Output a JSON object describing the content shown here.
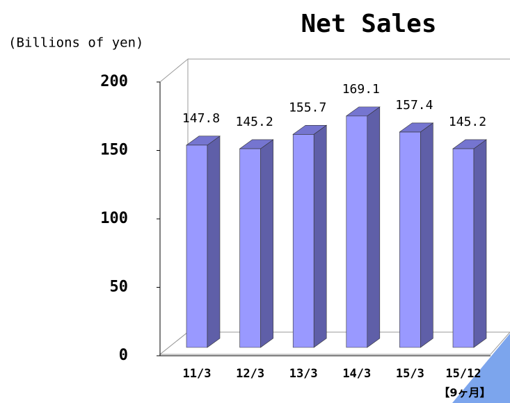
{
  "chart_data": {
    "type": "bar3d",
    "title": "Net Sales",
    "y_label": "(Billions of yen)",
    "categories": [
      "11/3",
      "12/3",
      "13/3",
      "14/3",
      "15/3",
      "15/12"
    ],
    "values": [
      147.8,
      145.2,
      155.7,
      169.1,
      157.4,
      145.2
    ],
    "annotation": "【9ヶ月】",
    "color": "#9999ff",
    "ylim": [
      0,
      200
    ],
    "yticks": [
      0,
      50,
      100,
      150,
      200
    ]
  }
}
